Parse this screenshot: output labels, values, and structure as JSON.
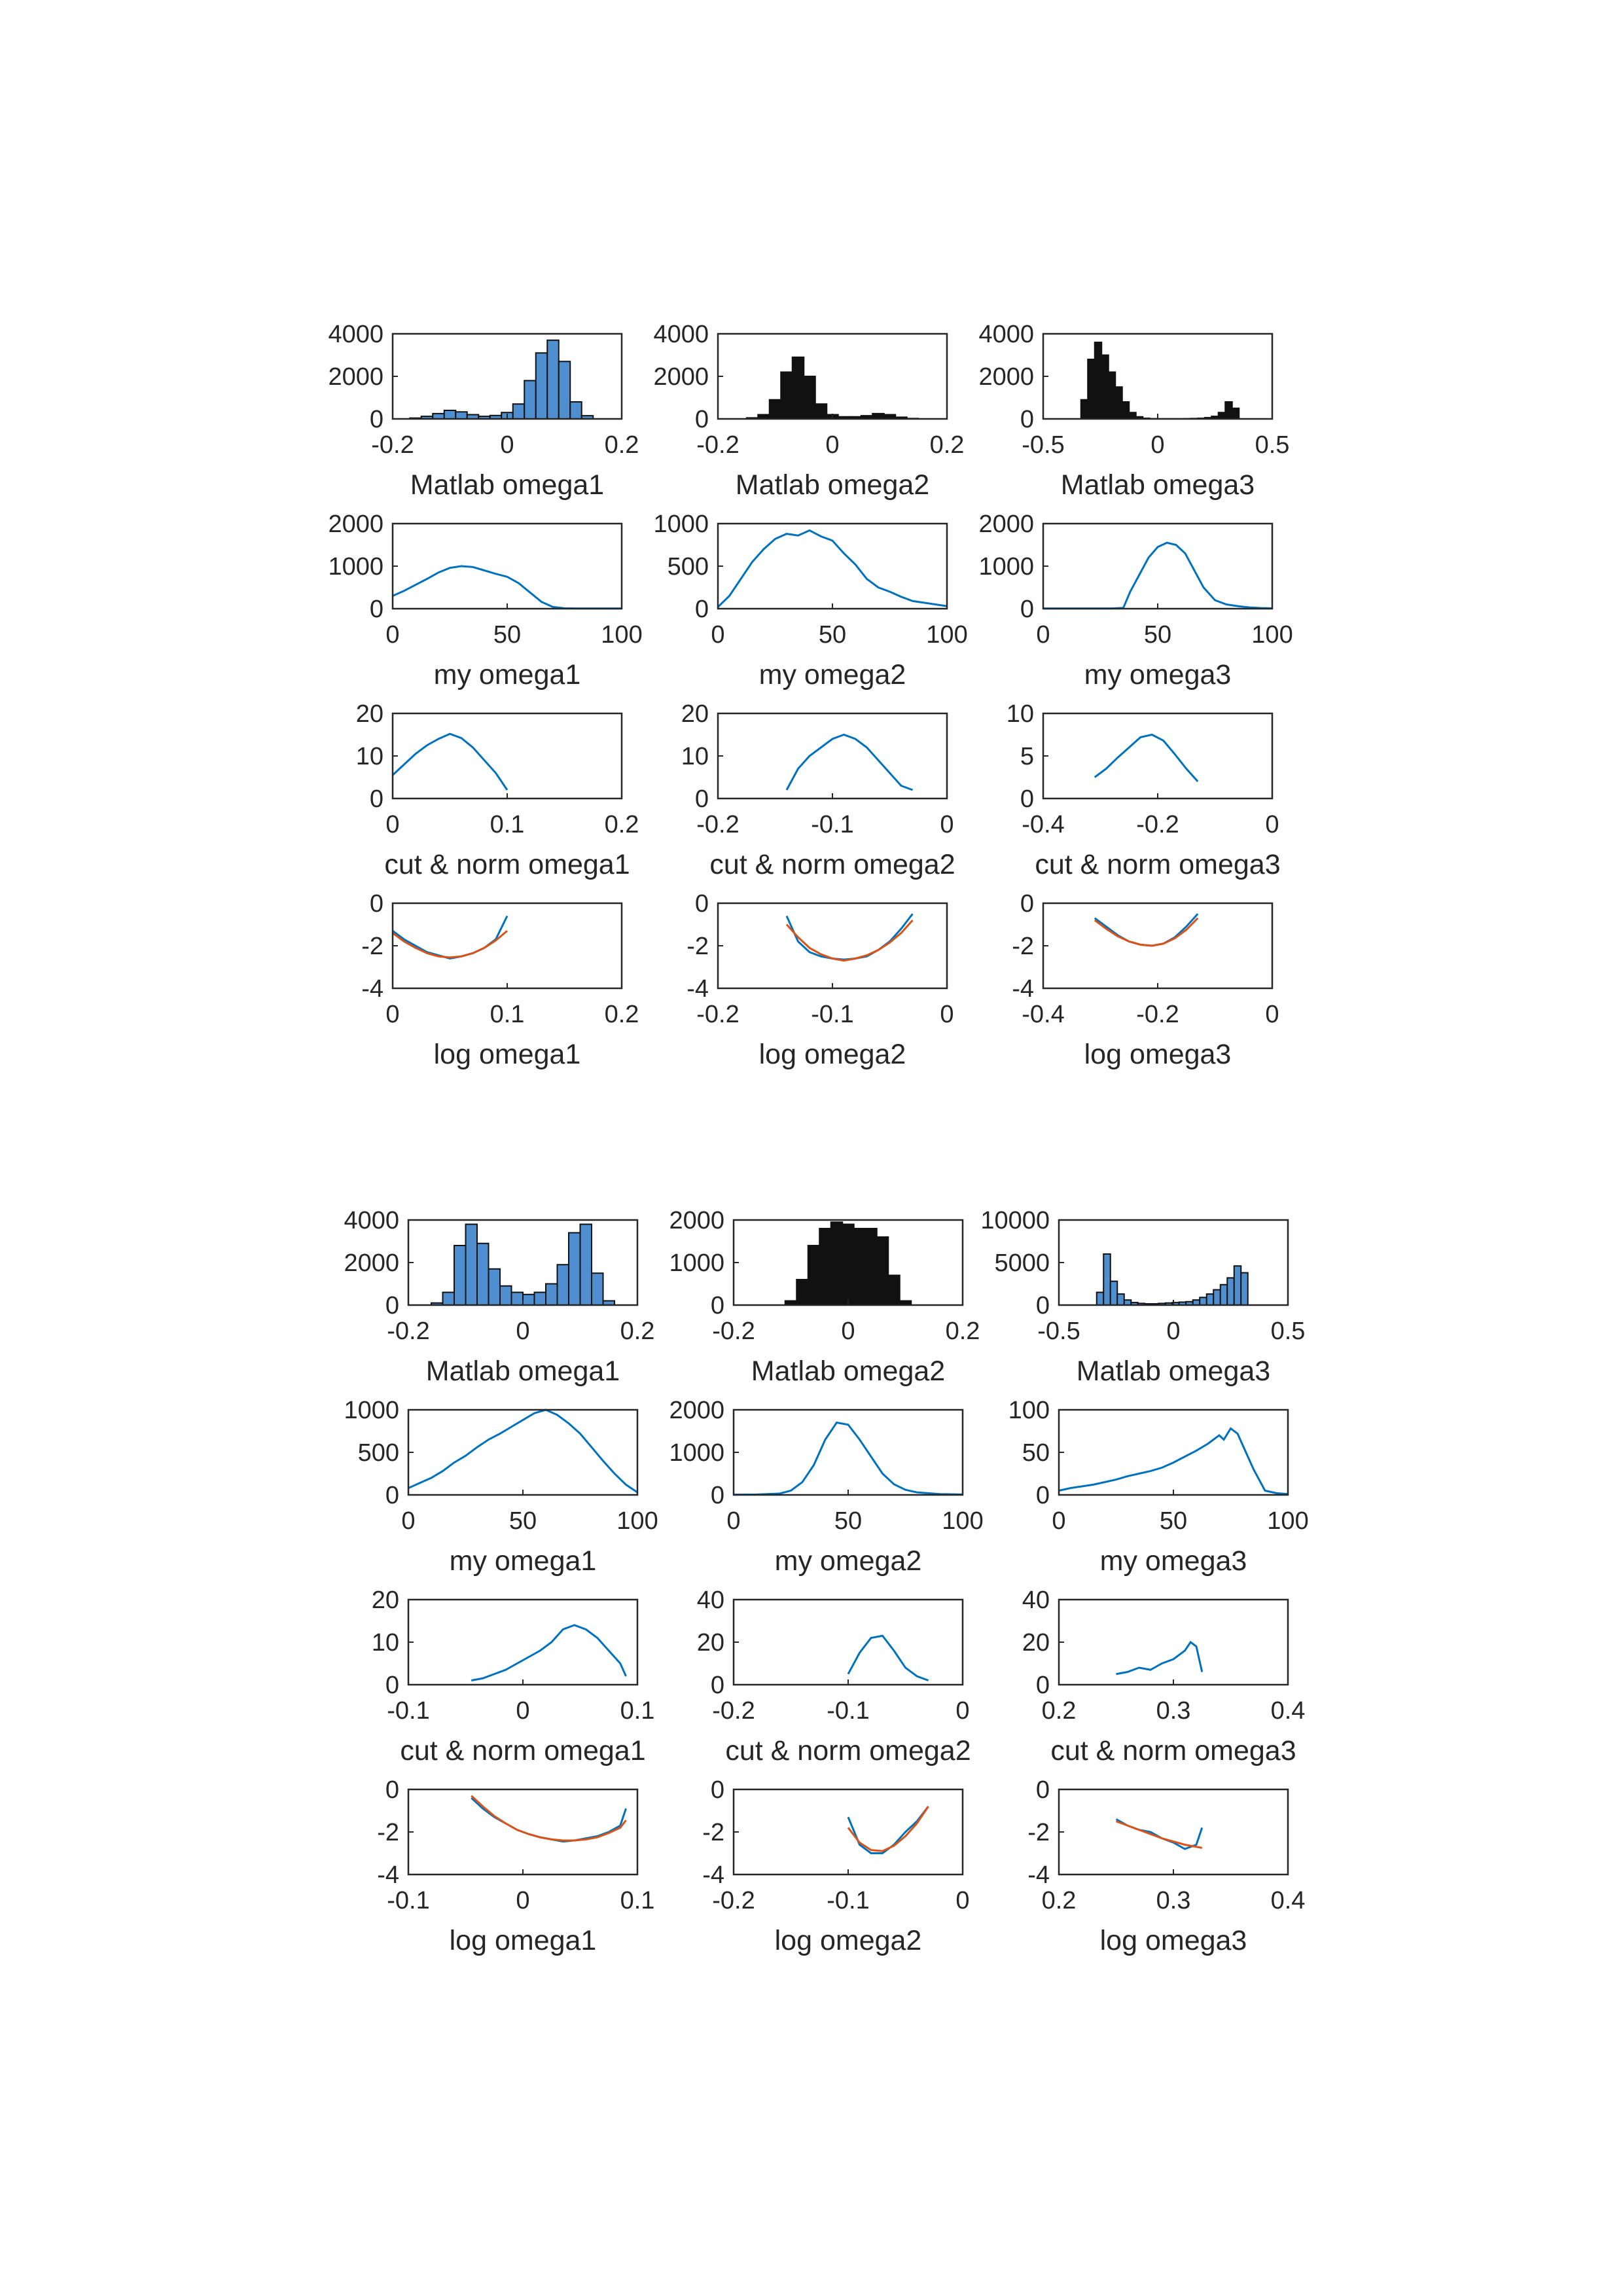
{
  "colors": {
    "line": "#0072BD",
    "fit": "#D95319",
    "bar_light": "#4F8FD0",
    "bar_dark": "#111111",
    "axes": "#262626"
  },
  "chart_data": [
    {
      "type": "bar",
      "xlabel": "Matlab omega1",
      "xlim": [
        -0.2,
        0.2
      ],
      "ylim": [
        0,
        4000
      ],
      "xticks": [
        -0.2,
        0,
        0.2
      ],
      "yticks": [
        0,
        2000,
        4000
      ],
      "bar_style": "light",
      "x": [
        -0.16,
        -0.14,
        -0.12,
        -0.1,
        -0.08,
        -0.06,
        -0.04,
        -0.02,
        0,
        0.02,
        0.04,
        0.06,
        0.08,
        0.1,
        0.12,
        0.14
      ],
      "values": [
        40,
        120,
        250,
        400,
        330,
        200,
        120,
        160,
        300,
        700,
        1800,
        3100,
        3700,
        2700,
        800,
        150
      ]
    },
    {
      "type": "bar",
      "xlabel": "Matlab omega2",
      "xlim": [
        -0.2,
        0.2
      ],
      "ylim": [
        0,
        4000
      ],
      "xticks": [
        -0.2,
        0,
        0.2
      ],
      "yticks": [
        0,
        2000,
        4000
      ],
      "bar_style": "dark",
      "x": [
        -0.14,
        -0.12,
        -0.1,
        -0.08,
        -0.06,
        -0.04,
        -0.02,
        0,
        0.02,
        0.04,
        0.06,
        0.08,
        0.1,
        0.12,
        0.14
      ],
      "values": [
        50,
        200,
        900,
        2200,
        2900,
        2000,
        700,
        200,
        100,
        100,
        150,
        250,
        200,
        80,
        20
      ]
    },
    {
      "type": "bar",
      "xlabel": "Matlab omega3",
      "xlim": [
        -0.5,
        0.5
      ],
      "ylim": [
        0,
        4000
      ],
      "xticks": [
        -0.5,
        0,
        0.5
      ],
      "yticks": [
        0,
        2000,
        4000
      ],
      "bar_style": "dark",
      "x": [
        -0.32,
        -0.29,
        -0.26,
        -0.23,
        -0.2,
        -0.17,
        -0.14,
        -0.11,
        -0.08,
        -0.05,
        -0.02,
        0.01,
        0.04,
        0.07,
        0.1,
        0.13,
        0.16,
        0.19,
        0.22,
        0.25,
        0.28,
        0.31,
        0.34
      ],
      "values": [
        900,
        2800,
        3600,
        3000,
        2200,
        1500,
        800,
        300,
        100,
        30,
        10,
        5,
        5,
        5,
        5,
        10,
        20,
        30,
        60,
        120,
        300,
        800,
        500
      ]
    },
    {
      "type": "line",
      "xlabel": "my omega1",
      "xlim": [
        0,
        100
      ],
      "ylim": [
        0,
        2000
      ],
      "xticks": [
        0,
        50,
        100
      ],
      "yticks": [
        0,
        1000,
        2000
      ],
      "x": [
        0,
        5,
        10,
        15,
        20,
        25,
        30,
        35,
        40,
        45,
        50,
        55,
        60,
        65,
        70,
        75,
        80,
        85,
        90,
        95,
        100
      ],
      "values": [
        300,
        420,
        560,
        700,
        850,
        960,
        1000,
        980,
        900,
        820,
        750,
        600,
        380,
        160,
        40,
        10,
        5,
        5,
        5,
        5,
        5
      ]
    },
    {
      "type": "line",
      "xlabel": "my omega2",
      "xlim": [
        0,
        100
      ],
      "ylim": [
        0,
        1000
      ],
      "xticks": [
        0,
        50,
        100
      ],
      "yticks": [
        0,
        500,
        1000
      ],
      "x": [
        0,
        5,
        10,
        15,
        20,
        25,
        30,
        35,
        40,
        45,
        50,
        55,
        60,
        65,
        70,
        75,
        80,
        85,
        90,
        95,
        100
      ],
      "values": [
        20,
        150,
        350,
        550,
        700,
        820,
        880,
        860,
        920,
        850,
        800,
        650,
        520,
        350,
        250,
        200,
        140,
        90,
        70,
        50,
        30
      ]
    },
    {
      "type": "line",
      "xlabel": "my omega3",
      "xlim": [
        0,
        100
      ],
      "ylim": [
        0,
        2000
      ],
      "xticks": [
        0,
        50,
        100
      ],
      "yticks": [
        0,
        1000,
        2000
      ],
      "x": [
        0,
        10,
        20,
        30,
        35,
        38,
        42,
        46,
        50,
        54,
        58,
        62,
        66,
        70,
        75,
        80,
        85,
        90,
        95,
        100
      ],
      "values": [
        5,
        5,
        5,
        5,
        20,
        400,
        800,
        1200,
        1450,
        1550,
        1500,
        1300,
        900,
        500,
        200,
        100,
        60,
        30,
        15,
        10
      ]
    },
    {
      "type": "line",
      "xlabel": "cut & norm omega1",
      "xlim": [
        0,
        0.2
      ],
      "ylim": [
        0,
        20
      ],
      "xticks": [
        0,
        0.1,
        0.2
      ],
      "yticks": [
        0,
        10,
        20
      ],
      "x": [
        0,
        0.01,
        0.02,
        0.03,
        0.04,
        0.05,
        0.06,
        0.07,
        0.08,
        0.09,
        0.1
      ],
      "values": [
        5.5,
        8,
        10.5,
        12.5,
        14,
        15.2,
        14.2,
        12,
        9,
        6,
        2
      ]
    },
    {
      "type": "line",
      "xlabel": "cut & norm omega2",
      "xlim": [
        -0.2,
        0
      ],
      "ylim": [
        0,
        20
      ],
      "xticks": [
        -0.2,
        -0.1,
        0
      ],
      "yticks": [
        0,
        10,
        20
      ],
      "x": [
        -0.14,
        -0.13,
        -0.12,
        -0.11,
        -0.1,
        -0.09,
        -0.08,
        -0.07,
        -0.06,
        -0.05,
        -0.04,
        -0.03
      ],
      "values": [
        2,
        7,
        10,
        12,
        14,
        15,
        14,
        12,
        9,
        6,
        3,
        2
      ]
    },
    {
      "type": "line",
      "xlabel": "cut & norm omega3",
      "xlim": [
        -0.4,
        0
      ],
      "ylim": [
        0,
        10
      ],
      "xticks": [
        -0.4,
        -0.2,
        0
      ],
      "yticks": [
        0,
        5,
        10
      ],
      "x": [
        -0.31,
        -0.29,
        -0.27,
        -0.25,
        -0.23,
        -0.21,
        -0.19,
        -0.17,
        -0.15,
        -0.13
      ],
      "values": [
        2.5,
        3.5,
        4.8,
        6,
        7.2,
        7.5,
        6.8,
        5.2,
        3.5,
        2
      ]
    },
    {
      "type": "line",
      "xlabel": "log omega1",
      "xlim": [
        0,
        0.2
      ],
      "ylim": [
        -4,
        0
      ],
      "xticks": [
        0,
        0.1,
        0.2
      ],
      "yticks": [
        -4,
        -2,
        0
      ],
      "x": [
        0,
        0.01,
        0.02,
        0.03,
        0.04,
        0.05,
        0.06,
        0.07,
        0.08,
        0.09,
        0.1
      ],
      "values": [
        -1.3,
        -1.7,
        -2.0,
        -2.3,
        -2.45,
        -2.6,
        -2.5,
        -2.35,
        -2.1,
        -1.7,
        -0.6
      ],
      "fit": [
        -1.4,
        -1.8,
        -2.1,
        -2.35,
        -2.5,
        -2.55,
        -2.5,
        -2.35,
        -2.1,
        -1.75,
        -1.3
      ]
    },
    {
      "type": "line",
      "xlabel": "log omega2",
      "xlim": [
        -0.2,
        0
      ],
      "ylim": [
        -4,
        0
      ],
      "xticks": [
        -0.2,
        -0.1,
        0
      ],
      "yticks": [
        -4,
        -2,
        0
      ],
      "x": [
        -0.14,
        -0.13,
        -0.12,
        -0.11,
        -0.1,
        -0.09,
        -0.08,
        -0.07,
        -0.06,
        -0.05,
        -0.04,
        -0.03
      ],
      "values": [
        -0.6,
        -1.8,
        -2.3,
        -2.5,
        -2.6,
        -2.65,
        -2.6,
        -2.5,
        -2.2,
        -1.8,
        -1.2,
        -0.5
      ],
      "fit": [
        -1.0,
        -1.6,
        -2.1,
        -2.4,
        -2.6,
        -2.7,
        -2.6,
        -2.45,
        -2.2,
        -1.85,
        -1.4,
        -0.8
      ]
    },
    {
      "type": "line",
      "xlabel": "log omega3",
      "xlim": [
        -0.4,
        0
      ],
      "ylim": [
        -4,
        0
      ],
      "xticks": [
        -0.4,
        -0.2,
        0
      ],
      "yticks": [
        -4,
        -2,
        0
      ],
      "x": [
        -0.31,
        -0.29,
        -0.27,
        -0.25,
        -0.23,
        -0.21,
        -0.19,
        -0.17,
        -0.15,
        -0.13
      ],
      "values": [
        -0.7,
        -1.1,
        -1.5,
        -1.8,
        -1.95,
        -2.0,
        -1.9,
        -1.6,
        -1.1,
        -0.5
      ],
      "fit": [
        -0.8,
        -1.2,
        -1.55,
        -1.8,
        -1.95,
        -2.0,
        -1.9,
        -1.65,
        -1.25,
        -0.7
      ]
    },
    {
      "type": "bar",
      "xlabel": "Matlab omega1",
      "xlim": [
        -0.2,
        0.2
      ],
      "ylim": [
        0,
        4000
      ],
      "xticks": [
        -0.2,
        0,
        0.2
      ],
      "yticks": [
        0,
        2000,
        4000
      ],
      "bar_style": "light",
      "x": [
        -0.15,
        -0.13,
        -0.11,
        -0.09,
        -0.07,
        -0.05,
        -0.03,
        -0.01,
        0.01,
        0.03,
        0.05,
        0.07,
        0.09,
        0.11,
        0.13,
        0.15
      ],
      "values": [
        100,
        600,
        2800,
        3800,
        2900,
        1700,
        900,
        600,
        500,
        600,
        1000,
        1900,
        3400,
        3800,
        1500,
        200
      ]
    },
    {
      "type": "bar",
      "xlabel": "Matlab omega2",
      "xlim": [
        -0.2,
        0.2
      ],
      "ylim": [
        0,
        2000
      ],
      "xticks": [
        -0.2,
        0,
        0.2
      ],
      "yticks": [
        0,
        1000,
        2000
      ],
      "bar_style": "dark",
      "x": [
        -0.1,
        -0.08,
        -0.06,
        -0.04,
        -0.02,
        0,
        0.02,
        0.04,
        0.06,
        0.08,
        0.1
      ],
      "values": [
        100,
        600,
        1400,
        1800,
        1950,
        1900,
        1800,
        1800,
        1600,
        700,
        100
      ]
    },
    {
      "type": "bar",
      "xlabel": "Matlab omega3",
      "xlim": [
        -0.5,
        0.5
      ],
      "ylim": [
        0,
        10000
      ],
      "xticks": [
        -0.5,
        0,
        0.5
      ],
      "yticks": [
        0,
        5000,
        10000
      ],
      "bar_style": "light",
      "x": [
        -0.32,
        -0.29,
        -0.26,
        -0.23,
        -0.2,
        -0.17,
        -0.14,
        -0.11,
        -0.08,
        -0.05,
        -0.02,
        0.01,
        0.04,
        0.07,
        0.1,
        0.13,
        0.16,
        0.19,
        0.22,
        0.25,
        0.28,
        0.31
      ],
      "values": [
        1500,
        6000,
        2800,
        1300,
        600,
        300,
        200,
        150,
        150,
        200,
        250,
        300,
        350,
        400,
        600,
        900,
        1300,
        1800,
        2400,
        3200,
        4600,
        3800
      ]
    },
    {
      "type": "line",
      "xlabel": "my omega1",
      "xlim": [
        0,
        100
      ],
      "ylim": [
        0,
        1000
      ],
      "xticks": [
        0,
        50,
        100
      ],
      "yticks": [
        0,
        500,
        1000
      ],
      "x": [
        0,
        5,
        10,
        15,
        20,
        25,
        30,
        35,
        40,
        45,
        50,
        55,
        60,
        65,
        70,
        75,
        80,
        85,
        90,
        95,
        100
      ],
      "values": [
        80,
        140,
        200,
        280,
        380,
        460,
        560,
        650,
        720,
        800,
        880,
        960,
        1000,
        940,
        840,
        720,
        560,
        400,
        250,
        120,
        30
      ]
    },
    {
      "type": "line",
      "xlabel": "my omega2",
      "xlim": [
        0,
        100
      ],
      "ylim": [
        0,
        2000
      ],
      "xticks": [
        0,
        50,
        100
      ],
      "yticks": [
        0,
        1000,
        2000
      ],
      "x": [
        0,
        10,
        20,
        25,
        30,
        35,
        40,
        45,
        50,
        55,
        60,
        65,
        70,
        75,
        80,
        90,
        100
      ],
      "values": [
        5,
        10,
        30,
        100,
        300,
        700,
        1300,
        1700,
        1650,
        1300,
        900,
        500,
        250,
        120,
        60,
        20,
        10
      ]
    },
    {
      "type": "line",
      "xlabel": "my omega3",
      "xlim": [
        0,
        100
      ],
      "ylim": [
        0,
        100
      ],
      "xticks": [
        0,
        50,
        100
      ],
      "yticks": [
        0,
        50,
        100
      ],
      "x": [
        0,
        5,
        10,
        15,
        20,
        25,
        30,
        35,
        40,
        45,
        50,
        55,
        60,
        65,
        70,
        72,
        75,
        78,
        80,
        85,
        90,
        95,
        100
      ],
      "values": [
        5,
        8,
        10,
        12,
        15,
        18,
        22,
        25,
        28,
        32,
        38,
        45,
        52,
        60,
        70,
        65,
        78,
        72,
        60,
        30,
        5,
        2,
        1
      ]
    },
    {
      "type": "line",
      "xlabel": "cut & norm omega1",
      "xlim": [
        -0.1,
        0.1
      ],
      "ylim": [
        0,
        20
      ],
      "xticks": [
        -0.1,
        0,
        0.1
      ],
      "yticks": [
        0,
        10,
        20
      ],
      "x": [
        -0.045,
        -0.035,
        -0.025,
        -0.015,
        -0.005,
        0.005,
        0.015,
        0.025,
        0.035,
        0.045,
        0.055,
        0.065,
        0.075,
        0.085,
        0.09
      ],
      "values": [
        1,
        1.5,
        2.5,
        3.5,
        5,
        6.5,
        8,
        10,
        13,
        14,
        13,
        11,
        8,
        5,
        2
      ]
    },
    {
      "type": "line",
      "xlabel": "cut & norm omega2",
      "xlim": [
        -0.2,
        0
      ],
      "ylim": [
        0,
        40
      ],
      "xticks": [
        -0.2,
        -0.1,
        0
      ],
      "yticks": [
        0,
        20,
        40
      ],
      "x": [
        -0.1,
        -0.09,
        -0.08,
        -0.07,
        -0.06,
        -0.05,
        -0.04,
        -0.03
      ],
      "values": [
        5,
        15,
        22,
        23,
        16,
        8,
        4,
        2
      ]
    },
    {
      "type": "line",
      "xlabel": "cut & norm omega3",
      "xlim": [
        0.2,
        0.4
      ],
      "ylim": [
        0,
        40
      ],
      "xticks": [
        0.2,
        0.3,
        0.4
      ],
      "yticks": [
        0,
        20,
        40
      ],
      "x": [
        0.25,
        0.26,
        0.27,
        0.28,
        0.29,
        0.3,
        0.31,
        0.315,
        0.32,
        0.325
      ],
      "values": [
        5,
        6,
        8,
        7,
        10,
        12,
        16,
        20,
        18,
        6
      ]
    },
    {
      "type": "line",
      "xlabel": "log omega1",
      "xlim": [
        -0.1,
        0.1
      ],
      "ylim": [
        -4,
        0
      ],
      "xticks": [
        -0.1,
        0,
        0.1
      ],
      "yticks": [
        -4,
        -2,
        0
      ],
      "x": [
        -0.045,
        -0.035,
        -0.025,
        -0.015,
        -0.005,
        0.005,
        0.015,
        0.025,
        0.035,
        0.045,
        0.055,
        0.065,
        0.075,
        0.085,
        0.09
      ],
      "values": [
        -0.4,
        -0.9,
        -1.3,
        -1.6,
        -1.9,
        -2.1,
        -2.25,
        -2.35,
        -2.45,
        -2.4,
        -2.3,
        -2.2,
        -2.0,
        -1.7,
        -0.9
      ],
      "fit": [
        -0.3,
        -0.8,
        -1.25,
        -1.6,
        -1.9,
        -2.1,
        -2.25,
        -2.35,
        -2.4,
        -2.4,
        -2.35,
        -2.25,
        -2.05,
        -1.8,
        -1.45
      ]
    },
    {
      "type": "line",
      "xlabel": "log omega2",
      "xlim": [
        -0.2,
        0
      ],
      "ylim": [
        -4,
        0
      ],
      "xticks": [
        -0.2,
        -0.1,
        0
      ],
      "yticks": [
        -4,
        -2,
        0
      ],
      "x": [
        -0.1,
        -0.09,
        -0.08,
        -0.07,
        -0.06,
        -0.05,
        -0.04,
        -0.03
      ],
      "values": [
        -1.3,
        -2.6,
        -3.0,
        -3.0,
        -2.6,
        -2.0,
        -1.5,
        -0.8
      ],
      "fit": [
        -1.8,
        -2.5,
        -2.85,
        -2.9,
        -2.65,
        -2.2,
        -1.6,
        -0.8
      ]
    },
    {
      "type": "line",
      "xlabel": "log omega3",
      "xlim": [
        0.2,
        0.4
      ],
      "ylim": [
        -4,
        0
      ],
      "xticks": [
        0.2,
        0.3,
        0.4
      ],
      "yticks": [
        -4,
        -2,
        0
      ],
      "x": [
        0.25,
        0.26,
        0.27,
        0.28,
        0.29,
        0.3,
        0.31,
        0.315,
        0.32,
        0.325
      ],
      "values": [
        -1.4,
        -1.7,
        -1.9,
        -2.0,
        -2.3,
        -2.5,
        -2.8,
        -2.7,
        -2.6,
        -1.8
      ],
      "fit": [
        -1.5,
        -1.7,
        -1.9,
        -2.1,
        -2.3,
        -2.45,
        -2.6,
        -2.65,
        -2.7,
        -2.75
      ]
    }
  ]
}
